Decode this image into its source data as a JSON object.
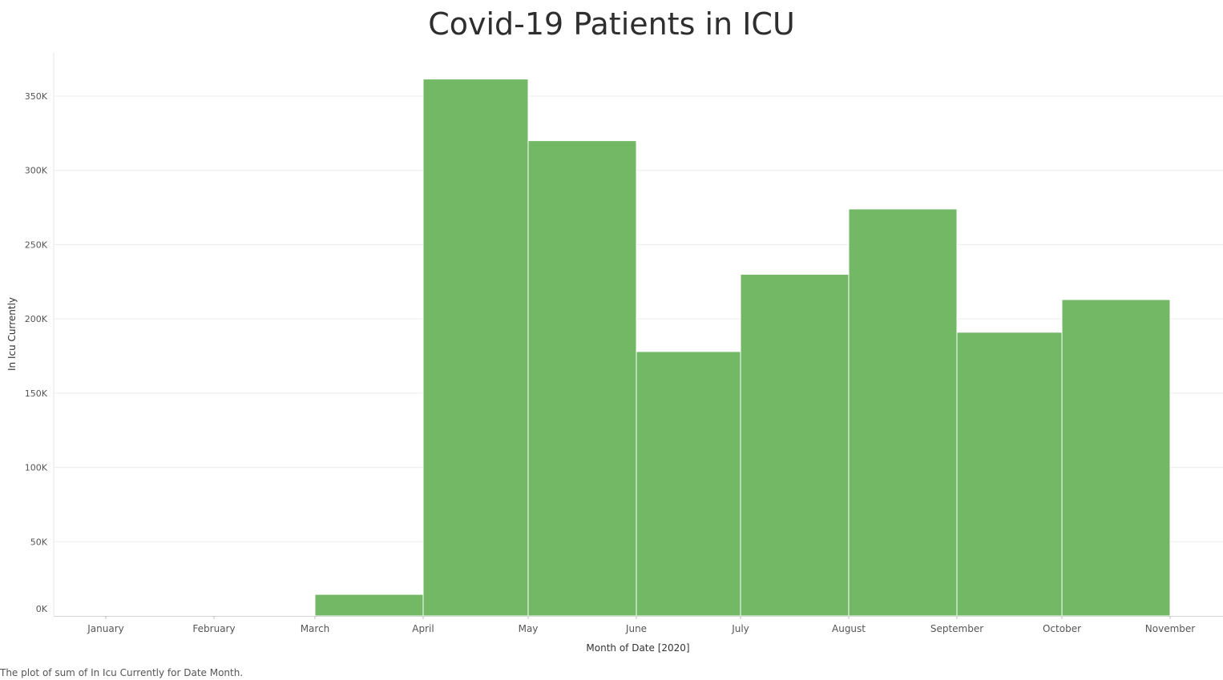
{
  "title": "Covid-19 Patients in ICU",
  "caption": "The plot of sum of In Icu Currently for Date Month.",
  "colors": {
    "bar": "#72b865",
    "grid": "#ececec",
    "axis_text": "#555555"
  },
  "chart_data": {
    "type": "bar",
    "title": "Covid-19 Patients in ICU",
    "xlabel": "Month of Date [2020]",
    "ylabel": "In Icu Currently",
    "x_ticks": [
      "January",
      "February",
      "March",
      "April",
      "May",
      "June",
      "July",
      "August",
      "September",
      "October",
      "November"
    ],
    "y_ticks": [
      "0K",
      "50K",
      "100K",
      "150K",
      "200K",
      "250K",
      "300K",
      "350K"
    ],
    "ylim": [
      0,
      360000
    ],
    "grid": true,
    "bars": [
      {
        "start": "March",
        "end": "April",
        "value": 14500
      },
      {
        "start": "April",
        "end": "May",
        "value": 361500
      },
      {
        "start": "May",
        "end": "June",
        "value": 320000
      },
      {
        "start": "June",
        "end": "July",
        "value": 178000
      },
      {
        "start": "July",
        "end": "August",
        "value": 230000
      },
      {
        "start": "August",
        "end": "September",
        "value": 274000
      },
      {
        "start": "September",
        "end": "October",
        "value": 191000
      },
      {
        "start": "October",
        "end": "November",
        "value": 213000
      }
    ]
  }
}
